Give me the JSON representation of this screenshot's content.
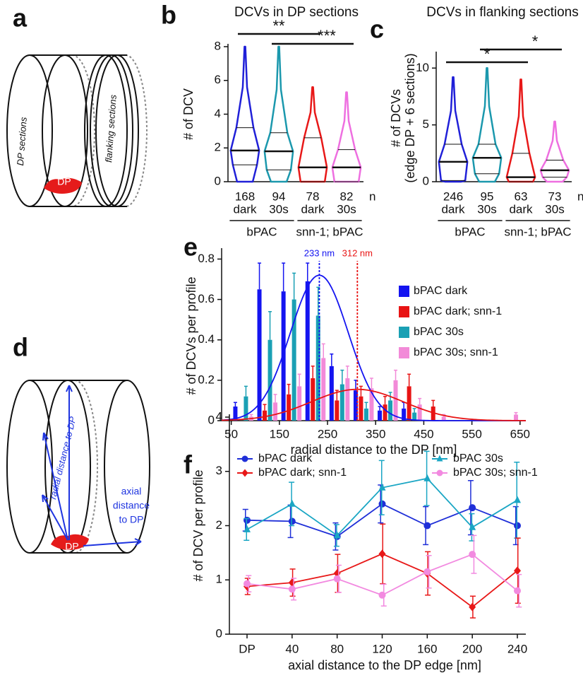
{
  "panel_labels": [
    "a",
    "b",
    "c",
    "d",
    "e",
    "f"
  ],
  "diagram_a": {
    "texts": [
      "DP sections",
      "flanking sections",
      "DP"
    ]
  },
  "diagram_d": {
    "texts": [
      "radial distance to DP",
      "axial",
      "distance",
      "to DP",
      "DP"
    ]
  },
  "chart_data": [
    {
      "type": "violin",
      "title": "DCVs in DP sections",
      "ylabel": "# of DCV",
      "categories": [
        "dark",
        "30s",
        "dark",
        "30s"
      ],
      "n": [
        168,
        94,
        78,
        82
      ],
      "n_label": "n",
      "groups": [
        "bPAC",
        "snn-1; bPAC"
      ],
      "colors": [
        "#2020d8",
        "#1b98ad",
        "#e81818",
        "#ee6fe0"
      ],
      "min": [
        0,
        0,
        0,
        0
      ],
      "q1": [
        1.0,
        0.7,
        0,
        0
      ],
      "median": [
        1.85,
        1.8,
        0.85,
        0.85
      ],
      "q3": [
        3.2,
        2.9,
        2.6,
        1.9
      ],
      "max": [
        8,
        8,
        5.6,
        5.3
      ],
      "significance": [
        {
          "label": "**",
          "between": [
            0,
            2
          ]
        },
        {
          "label": "***",
          "between": [
            1,
            3
          ]
        }
      ],
      "ylim": [
        0,
        8
      ],
      "yticks": [
        0,
        2,
        4,
        6,
        8
      ]
    },
    {
      "type": "violin",
      "title": "DCVs in flanking sections",
      "ylabel": [
        "# of DCVs",
        "(edge DP + 6 sections)"
      ],
      "categories": [
        "dark",
        "30s",
        "dark",
        "30s"
      ],
      "n": [
        246,
        95,
        63,
        73
      ],
      "n_label": "n",
      "groups": [
        "bPAC",
        "snn-1; bPAC"
      ],
      "colors": [
        "#2020d8",
        "#1b98ad",
        "#e81818",
        "#ee6fe0"
      ],
      "min": [
        0,
        0,
        0,
        0
      ],
      "q1": [
        0.1,
        0.7,
        0,
        0.4
      ],
      "median": [
        1.75,
        2.1,
        0.4,
        1.0
      ],
      "q3": [
        3.3,
        3.3,
        2.5,
        1.9
      ],
      "max": [
        9.2,
        10,
        9,
        5.3
      ],
      "significance": [
        {
          "label": "*",
          "between": [
            0,
            2
          ]
        },
        {
          "label": "*",
          "between": [
            1,
            3
          ]
        }
      ],
      "ylim": [
        0,
        11.2
      ],
      "yticks": [
        0,
        5,
        10
      ]
    },
    {
      "type": "bar",
      "ylabel": "# of DCVs per profile",
      "xlabel": "radial distance to the DP [nm]",
      "x": [
        75,
        125,
        175,
        225,
        275,
        325,
        375,
        425,
        475,
        525,
        575,
        625
      ],
      "series": [
        {
          "name": "bPAC dark",
          "color": "#1414f0",
          "values": [
            0.07,
            0.65,
            0.64,
            0.69,
            0.27,
            0.15,
            0.05,
            0.06,
            0,
            0,
            0,
            0
          ],
          "errors": [
            0.02,
            0.13,
            0.14,
            0.09,
            0.06,
            0.05,
            0.02,
            0.03,
            0,
            0,
            0,
            0
          ]
        },
        {
          "name": "bPAC dark; snn-1",
          "color": "#e81414",
          "values": [
            0,
            0.05,
            0.13,
            0.21,
            0.1,
            0.12,
            0.08,
            0.17,
            0.07,
            0,
            0,
            0
          ],
          "errors": [
            0,
            0.03,
            0.05,
            0.06,
            0.05,
            0.05,
            0.04,
            0.06,
            0.03,
            0,
            0,
            0
          ]
        },
        {
          "name": "bPAC 30s",
          "color": "#1aa0b4",
          "values": [
            0.12,
            0.4,
            0.6,
            0.52,
            0.18,
            0.06,
            0.1,
            0.04,
            0,
            0,
            0,
            0
          ],
          "errors": [
            0.05,
            0.14,
            0.13,
            0.14,
            0.07,
            0.03,
            0.04,
            0.02,
            0,
            0,
            0,
            0
          ]
        },
        {
          "name": "bPAC 30s; snn-1",
          "color": "#f28ad8",
          "values": [
            0.02,
            0.09,
            0.17,
            0.31,
            0.21,
            0.16,
            0.2,
            0.08,
            0.02,
            0,
            0,
            0.03
          ],
          "errors": [
            0.01,
            0.04,
            0.06,
            0.07,
            0.06,
            0.05,
            0.05,
            0.03,
            0.01,
            0,
            0,
            0.01
          ]
        }
      ],
      "annotations": [
        {
          "value": 233,
          "label": "233 nm",
          "color": "#1414f0",
          "amplitude": 0.72,
          "sd": 60
        },
        {
          "value": 312,
          "label": "312 nm",
          "color": "#e81414",
          "amplitude": 0.155,
          "sd": 95
        }
      ],
      "xlim": [
        30,
        662
      ],
      "xticks": [
        50,
        150,
        250,
        350,
        450,
        550,
        650
      ],
      "ylim": [
        0,
        0.84
      ],
      "yticks": [
        0,
        0.2,
        0.4,
        0.6,
        0.8
      ],
      "legend": "right"
    },
    {
      "type": "line",
      "ylabel": "# of DCV per profile",
      "xlabel": "axial distance to the DP edge [nm]",
      "categories": [
        "DP",
        "40",
        "80",
        "120",
        "160",
        "200",
        "240"
      ],
      "series": [
        {
          "name": "bPAC dark",
          "color": "#1f2fd8",
          "marker": "circle",
          "values": [
            2.1,
            2.08,
            1.8,
            2.4,
            2.0,
            2.33,
            2.0
          ],
          "errors": [
            0.2,
            0.3,
            0.25,
            0.35,
            0.35,
            0.5,
            0.35
          ]
        },
        {
          "name": "bPAC 30s",
          "color": "#1aa6c4",
          "marker": "triangle",
          "values": [
            1.93,
            2.4,
            1.82,
            2.7,
            2.87,
            1.97,
            2.47
          ],
          "errors": [
            0.2,
            0.4,
            0.2,
            0.5,
            0.5,
            0.25,
            0.7
          ]
        },
        {
          "name": "bPAC dark; snn-1",
          "color": "#e81818",
          "marker": "diamond",
          "values": [
            0.88,
            0.95,
            1.12,
            1.48,
            1.12,
            0.5,
            1.17
          ],
          "errors": [
            0.15,
            0.25,
            0.35,
            0.55,
            0.4,
            0.2,
            0.6
          ]
        },
        {
          "name": "bPAC 30s; snn-1",
          "color": "#f28ae0",
          "marker": "circle",
          "values": [
            0.93,
            0.83,
            1.02,
            0.72,
            1.15,
            1.47,
            0.8
          ],
          "errors": [
            0.15,
            0.2,
            0.25,
            0.2,
            0.3,
            0.35,
            0.3
          ]
        }
      ],
      "ylim": [
        0,
        4
      ],
      "yticks": [
        0,
        1,
        2,
        3,
        4
      ],
      "legend": "top"
    }
  ]
}
